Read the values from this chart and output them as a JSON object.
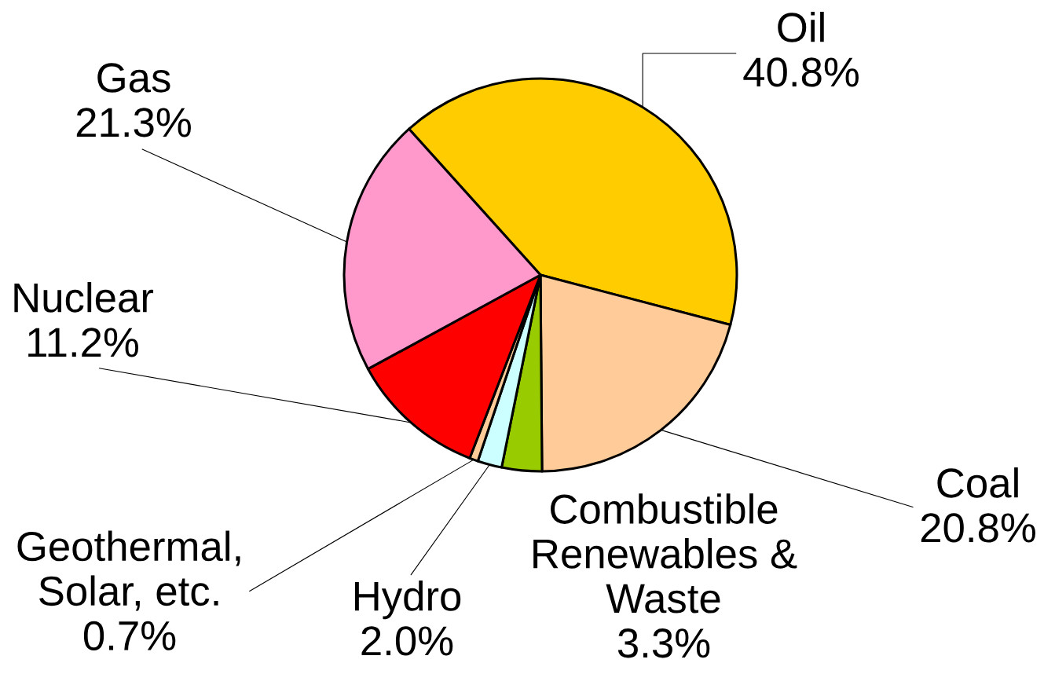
{
  "chart_data": {
    "type": "pie",
    "categories": [
      "Oil",
      "Coal",
      "Combustible Renewables & Waste",
      "Hydro",
      "Geothermal, Solar, etc.",
      "Nuclear",
      "Gas"
    ],
    "values": [
      40.8,
      20.8,
      3.3,
      2.0,
      0.7,
      11.2,
      21.3
    ],
    "value_labels": [
      "40.8%",
      "20.8%",
      "3.3%",
      "2.0%",
      "0.7%",
      "11.2%",
      "21.3%"
    ],
    "colors": [
      "#ffcc00",
      "#ffcc99",
      "#99cc00",
      "#ccffff",
      "#ffcc99",
      "#ff0000",
      "#ff99cc"
    ]
  }
}
